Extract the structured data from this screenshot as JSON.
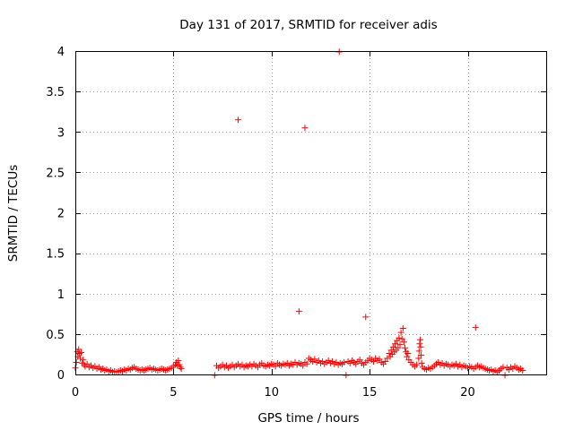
{
  "chart_data": {
    "type": "scatter",
    "title": "Day 131 of 2017, SRMTID for receiver adis",
    "xlabel": "GPS time / hours",
    "ylabel": "SRMTID / TECUs",
    "xlim": [
      0,
      24
    ],
    "ylim": [
      0,
      4
    ],
    "xticks": [
      0,
      5,
      10,
      15,
      20
    ],
    "xtick_labels": [
      "0",
      "5",
      "10",
      "15",
      "20"
    ],
    "yticks": [
      0,
      0.5,
      1,
      1.5,
      2,
      2.5,
      3,
      3.5,
      4
    ],
    "ytick_labels": [
      "0",
      "0.5",
      "1",
      "1.5",
      "2",
      "2.5",
      "3",
      "3.5",
      "4"
    ],
    "grid": true,
    "marker": "plus",
    "series": [
      {
        "name": "SRMTID",
        "color": "#ff0000",
        "points": [
          [
            0.0,
            0.08
          ],
          [
            0.05,
            0.15
          ],
          [
            0.1,
            0.28
          ],
          [
            0.13,
            0.22
          ],
          [
            0.17,
            0.31
          ],
          [
            0.2,
            0.26
          ],
          [
            0.25,
            0.2
          ],
          [
            0.3,
            0.27
          ],
          [
            0.35,
            0.14
          ],
          [
            0.4,
            0.18
          ],
          [
            0.45,
            0.12
          ],
          [
            0.5,
            0.1
          ],
          [
            0.6,
            0.13
          ],
          [
            0.7,
            0.09
          ],
          [
            0.8,
            0.11
          ],
          [
            0.9,
            0.08
          ],
          [
            1.0,
            0.1
          ],
          [
            1.1,
            0.07
          ],
          [
            1.2,
            0.09
          ],
          [
            1.3,
            0.06
          ],
          [
            1.4,
            0.07
          ],
          [
            1.5,
            0.05
          ],
          [
            1.6,
            0.06
          ],
          [
            1.7,
            0.04
          ],
          [
            1.8,
            0.05
          ],
          [
            1.9,
            0.03
          ],
          [
            2.0,
            0.04
          ],
          [
            2.1,
            0.03
          ],
          [
            2.2,
            0.04
          ],
          [
            2.3,
            0.05
          ],
          [
            2.4,
            0.04
          ],
          [
            2.5,
            0.06
          ],
          [
            2.6,
            0.05
          ],
          [
            2.7,
            0.07
          ],
          [
            2.8,
            0.06
          ],
          [
            2.9,
            0.08
          ],
          [
            3.0,
            0.09
          ],
          [
            3.1,
            0.07
          ],
          [
            3.2,
            0.06
          ],
          [
            3.3,
            0.05
          ],
          [
            3.4,
            0.06
          ],
          [
            3.5,
            0.05
          ],
          [
            3.6,
            0.06
          ],
          [
            3.7,
            0.07
          ],
          [
            3.8,
            0.08
          ],
          [
            3.9,
            0.06
          ],
          [
            4.0,
            0.07
          ],
          [
            4.1,
            0.06
          ],
          [
            4.2,
            0.05
          ],
          [
            4.3,
            0.06
          ],
          [
            4.4,
            0.07
          ],
          [
            4.5,
            0.06
          ],
          [
            4.6,
            0.05
          ],
          [
            4.7,
            0.06
          ],
          [
            4.8,
            0.07
          ],
          [
            4.9,
            0.08
          ],
          [
            5.0,
            0.1
          ],
          [
            5.1,
            0.12
          ],
          [
            5.15,
            0.15
          ],
          [
            5.2,
            0.11
          ],
          [
            5.25,
            0.17
          ],
          [
            5.3,
            0.12
          ],
          [
            5.35,
            0.09
          ],
          [
            5.4,
            0.07
          ],
          [
            7.1,
            -0.01
          ],
          [
            7.2,
            0.11
          ],
          [
            7.3,
            0.08
          ],
          [
            7.4,
            0.1
          ],
          [
            7.5,
            0.12
          ],
          [
            7.6,
            0.09
          ],
          [
            7.7,
            0.11
          ],
          [
            7.8,
            0.08
          ],
          [
            7.9,
            0.1
          ],
          [
            8.0,
            0.12
          ],
          [
            8.1,
            0.09
          ],
          [
            8.2,
            0.11
          ],
          [
            8.3,
            0.13
          ],
          [
            8.4,
            0.1
          ],
          [
            8.5,
            0.12
          ],
          [
            8.6,
            0.09
          ],
          [
            8.7,
            0.11
          ],
          [
            8.8,
            0.1
          ],
          [
            8.9,
            0.12
          ],
          [
            9.0,
            0.1
          ],
          [
            9.1,
            0.13
          ],
          [
            9.2,
            0.11
          ],
          [
            9.3,
            0.09
          ],
          [
            9.4,
            0.12
          ],
          [
            9.5,
            0.14
          ],
          [
            9.6,
            0.11
          ],
          [
            9.7,
            0.1
          ],
          [
            9.8,
            0.12
          ],
          [
            9.9,
            0.11
          ],
          [
            10.0,
            0.13
          ],
          [
            10.1,
            0.12
          ],
          [
            10.2,
            0.1
          ],
          [
            10.3,
            0.14
          ],
          [
            10.4,
            0.12
          ],
          [
            10.5,
            0.11
          ],
          [
            10.6,
            0.13
          ],
          [
            10.7,
            0.12
          ],
          [
            10.8,
            0.14
          ],
          [
            10.9,
            0.11
          ],
          [
            11.0,
            0.13
          ],
          [
            11.1,
            0.12
          ],
          [
            11.2,
            0.15
          ],
          [
            11.3,
            0.12
          ],
          [
            11.4,
            0.14
          ],
          [
            11.5,
            0.13
          ],
          [
            11.6,
            0.11
          ],
          [
            11.7,
            0.15
          ],
          [
            11.8,
            0.13
          ],
          [
            11.9,
            0.2
          ],
          [
            12.0,
            0.18
          ],
          [
            12.1,
            0.16
          ],
          [
            12.2,
            0.19
          ],
          [
            12.3,
            0.15
          ],
          [
            12.4,
            0.17
          ],
          [
            12.5,
            0.14
          ],
          [
            12.6,
            0.16
          ],
          [
            12.7,
            0.13
          ],
          [
            12.8,
            0.15
          ],
          [
            12.9,
            0.17
          ],
          [
            13.0,
            0.14
          ],
          [
            13.1,
            0.16
          ],
          [
            13.2,
            0.13
          ],
          [
            13.3,
            0.15
          ],
          [
            13.4,
            0.12
          ],
          [
            13.5,
            0.14
          ],
          [
            13.6,
            0.13
          ],
          [
            13.7,
            0.15
          ],
          [
            13.8,
            -0.01
          ],
          [
            13.9,
            0.16
          ],
          [
            14.0,
            0.14
          ],
          [
            14.1,
            0.17
          ],
          [
            14.2,
            0.15
          ],
          [
            14.3,
            0.13
          ],
          [
            14.4,
            0.16
          ],
          [
            14.5,
            0.18
          ],
          [
            14.6,
            0.14
          ],
          [
            14.7,
            0.12
          ],
          [
            14.8,
            0.15
          ],
          [
            14.9,
            0.17
          ],
          [
            15.0,
            0.2
          ],
          [
            15.1,
            0.18
          ],
          [
            15.2,
            0.16
          ],
          [
            15.3,
            0.2
          ],
          [
            15.4,
            0.17
          ],
          [
            15.5,
            0.19
          ],
          [
            15.6,
            0.15
          ],
          [
            15.7,
            0.13
          ],
          [
            15.8,
            0.16
          ],
          [
            15.9,
            0.2
          ],
          [
            16.0,
            0.26
          ],
          [
            16.05,
            0.22
          ],
          [
            16.1,
            0.3
          ],
          [
            16.15,
            0.25
          ],
          [
            16.2,
            0.34
          ],
          [
            16.25,
            0.28
          ],
          [
            16.3,
            0.38
          ],
          [
            16.35,
            0.3
          ],
          [
            16.4,
            0.42
          ],
          [
            16.45,
            0.33
          ],
          [
            16.5,
            0.45
          ],
          [
            16.55,
            0.37
          ],
          [
            16.6,
            0.52
          ],
          [
            16.65,
            0.44
          ],
          [
            16.7,
            0.57
          ],
          [
            16.75,
            0.4
          ],
          [
            16.8,
            0.33
          ],
          [
            16.85,
            0.28
          ],
          [
            16.9,
            0.22
          ],
          [
            16.95,
            0.26
          ],
          [
            17.0,
            0.18
          ],
          [
            17.1,
            0.15
          ],
          [
            17.2,
            0.12
          ],
          [
            17.3,
            0.1
          ],
          [
            17.4,
            0.12
          ],
          [
            17.5,
            0.2
          ],
          [
            17.52,
            0.29
          ],
          [
            17.55,
            0.38
          ],
          [
            17.58,
            0.43
          ],
          [
            17.6,
            0.34
          ],
          [
            17.62,
            0.24
          ],
          [
            17.65,
            0.14
          ],
          [
            17.7,
            0.09
          ],
          [
            17.8,
            0.07
          ],
          [
            17.9,
            0.06
          ],
          [
            18.0,
            0.08
          ],
          [
            18.1,
            0.07
          ],
          [
            18.2,
            0.09
          ],
          [
            18.3,
            0.11
          ],
          [
            18.4,
            0.13
          ],
          [
            18.5,
            0.15
          ],
          [
            18.6,
            0.12
          ],
          [
            18.7,
            0.14
          ],
          [
            18.8,
            0.11
          ],
          [
            18.9,
            0.13
          ],
          [
            19.0,
            0.12
          ],
          [
            19.1,
            0.1
          ],
          [
            19.2,
            0.12
          ],
          [
            19.3,
            0.11
          ],
          [
            19.4,
            0.13
          ],
          [
            19.5,
            0.1
          ],
          [
            19.6,
            0.12
          ],
          [
            19.7,
            0.09
          ],
          [
            19.8,
            0.11
          ],
          [
            19.9,
            0.1
          ],
          [
            20.0,
            0.08
          ],
          [
            20.1,
            0.1
          ],
          [
            20.2,
            0.09
          ],
          [
            20.3,
            0.07
          ],
          [
            20.4,
            0.09
          ],
          [
            20.5,
            0.11
          ],
          [
            20.6,
            0.09
          ],
          [
            20.7,
            0.1
          ],
          [
            20.8,
            0.08
          ],
          [
            20.9,
            0.07
          ],
          [
            21.0,
            0.06
          ],
          [
            21.1,
            0.05
          ],
          [
            21.2,
            0.06
          ],
          [
            21.3,
            0.04
          ],
          [
            21.4,
            0.05
          ],
          [
            21.5,
            0.03
          ],
          [
            21.6,
            0.05
          ],
          [
            21.7,
            0.07
          ],
          [
            21.8,
            0.09
          ],
          [
            21.9,
            -0.01
          ],
          [
            22.0,
            0.08
          ],
          [
            22.1,
            0.06
          ],
          [
            22.2,
            0.09
          ],
          [
            22.3,
            0.07
          ],
          [
            22.4,
            0.1
          ],
          [
            22.5,
            0.08
          ],
          [
            22.6,
            0.06
          ],
          [
            22.7,
            0.07
          ],
          [
            22.8,
            0.05
          ],
          [
            8.3,
            3.15
          ],
          [
            11.7,
            3.05
          ],
          [
            13.45,
            3.99
          ],
          [
            11.4,
            0.78
          ],
          [
            14.8,
            0.71
          ],
          [
            20.4,
            0.58
          ]
        ]
      }
    ]
  }
}
